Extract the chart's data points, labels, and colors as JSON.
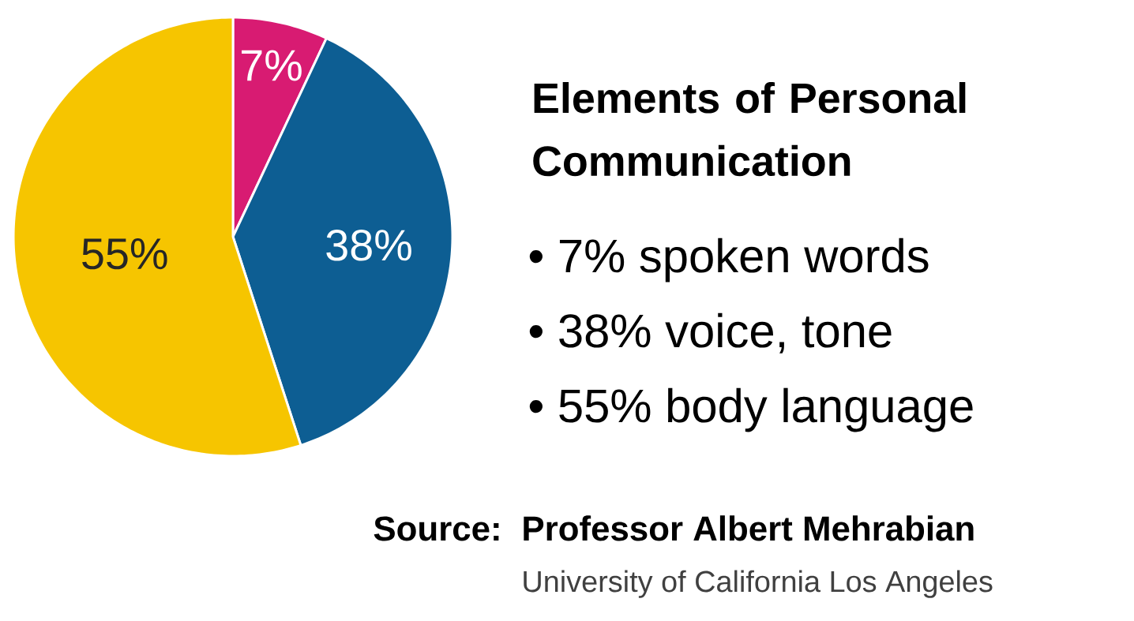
{
  "chart_data": {
    "type": "pie",
    "title": "Elements of Personal Communication",
    "categories": [
      null,
      null,
      null
    ],
    "values": [
      7,
      38,
      55
    ],
    "colors": [
      "#d81b72",
      "#0d5e93",
      "#f6c500"
    ],
    "value_labels": [
      "7%",
      "38%",
      "55%"
    ],
    "annotations": [
      "• 7% spoken words",
      "• 38% voice, tone",
      "• 55% body language",
      "Source:",
      "Professor Albert Mehrabian",
      "University of California Los Angeles"
    ]
  }
}
